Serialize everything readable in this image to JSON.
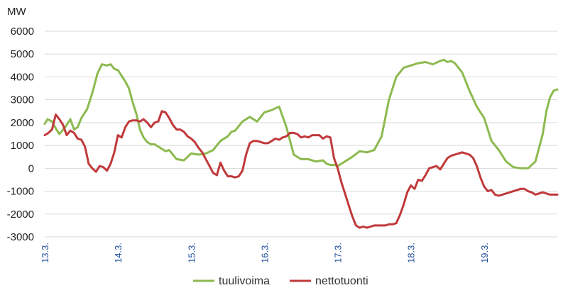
{
  "chart_data": {
    "type": "line",
    "ylabel": "MW",
    "ylim": [
      -3000,
      6000
    ],
    "yticks": [
      6000,
      5000,
      4000,
      3000,
      2000,
      1000,
      0,
      -1000,
      -2000,
      -3000
    ],
    "xlim": [
      0,
      7
    ],
    "categories": [
      "13.3.",
      "14.3.",
      "15.3.",
      "16.3.",
      "17.3.",
      "18.3.",
      "19.3."
    ],
    "grid": true,
    "legend_position": "bottom",
    "series": [
      {
        "name": "tuulivoima",
        "color": "#8cba4f",
        "x": [
          0,
          0.04,
          0.1,
          0.15,
          0.2,
          0.28,
          0.35,
          0.4,
          0.45,
          0.5,
          0.58,
          0.65,
          0.72,
          0.78,
          0.85,
          0.9,
          0.95,
          1.0,
          1.05,
          1.1,
          1.15,
          1.2,
          1.25,
          1.3,
          1.35,
          1.4,
          1.45,
          1.5,
          1.55,
          1.6,
          1.65,
          1.7,
          1.8,
          1.9,
          2.0,
          2.1,
          2.2,
          2.3,
          2.4,
          2.5,
          2.55,
          2.6,
          2.7,
          2.8,
          2.9,
          3.0,
          3.1,
          3.2,
          3.3,
          3.4,
          3.5,
          3.6,
          3.7,
          3.8,
          3.85,
          3.9,
          3.95,
          4.0,
          4.05,
          4.1,
          4.2,
          4.3,
          4.4,
          4.5,
          4.6,
          4.7,
          4.8,
          4.9,
          5.0,
          5.1,
          5.2,
          5.3,
          5.4,
          5.45,
          5.5,
          5.55,
          5.6,
          5.65,
          5.7,
          5.8,
          5.9,
          6.0,
          6.1,
          6.2,
          6.3,
          6.4,
          6.5,
          6.6,
          6.7,
          6.8,
          6.85,
          6.9,
          6.95,
          7.0
        ],
        "values": [
          1950,
          2150,
          2050,
          1750,
          1500,
          1800,
          2150,
          1700,
          1800,
          2200,
          2600,
          3300,
          4150,
          4550,
          4500,
          4550,
          4350,
          4300,
          4050,
          3800,
          3500,
          2900,
          2400,
          1700,
          1350,
          1150,
          1050,
          1050,
          950,
          850,
          750,
          800,
          400,
          350,
          650,
          600,
          650,
          800,
          1200,
          1400,
          1600,
          1650,
          2050,
          2250,
          2050,
          2450,
          2550,
          2700,
          1800,
          600,
          400,
          400,
          300,
          350,
          200,
          150,
          150,
          100,
          200,
          300,
          500,
          750,
          700,
          800,
          1400,
          3000,
          4000,
          4400,
          4500,
          4600,
          4650,
          4550,
          4700,
          4750,
          4650,
          4700,
          4600,
          4400,
          4200,
          3400,
          2700,
          2200,
          1200,
          800,
          300,
          50,
          0,
          0,
          300,
          1500,
          2500,
          3100,
          3400,
          3450
        ]
      },
      {
        "name": "nettotuonti",
        "color": "#c0393b",
        "x": [
          0,
          0.05,
          0.1,
          0.15,
          0.2,
          0.25,
          0.3,
          0.35,
          0.4,
          0.45,
          0.5,
          0.55,
          0.6,
          0.65,
          0.7,
          0.75,
          0.8,
          0.85,
          0.9,
          0.95,
          1.0,
          1.05,
          1.1,
          1.15,
          1.2,
          1.25,
          1.3,
          1.35,
          1.4,
          1.45,
          1.5,
          1.55,
          1.6,
          1.65,
          1.7,
          1.75,
          1.8,
          1.85,
          1.9,
          1.95,
          2.0,
          2.05,
          2.1,
          2.15,
          2.2,
          2.25,
          2.3,
          2.35,
          2.4,
          2.45,
          2.5,
          2.55,
          2.6,
          2.65,
          2.7,
          2.75,
          2.8,
          2.85,
          2.9,
          2.95,
          3.0,
          3.05,
          3.1,
          3.15,
          3.2,
          3.25,
          3.3,
          3.35,
          3.4,
          3.45,
          3.5,
          3.55,
          3.6,
          3.65,
          3.7,
          3.75,
          3.8,
          3.85,
          3.9,
          3.95,
          4.0,
          4.05,
          4.1,
          4.15,
          4.2,
          4.25,
          4.3,
          4.35,
          4.4,
          4.45,
          4.5,
          4.55,
          4.6,
          4.65,
          4.7,
          4.75,
          4.8,
          4.85,
          4.9,
          4.95,
          5.0,
          5.05,
          5.1,
          5.15,
          5.2,
          5.25,
          5.3,
          5.35,
          5.4,
          5.45,
          5.5,
          5.55,
          5.6,
          5.65,
          5.7,
          5.75,
          5.8,
          5.85,
          5.9,
          5.95,
          6.0,
          6.05,
          6.1,
          6.15,
          6.2,
          6.25,
          6.3,
          6.35,
          6.4,
          6.45,
          6.5,
          6.55,
          6.6,
          6.65,
          6.7,
          6.75,
          6.8,
          6.85,
          6.9,
          6.95,
          7.0
        ],
        "values": [
          1450,
          1550,
          1700,
          2350,
          2150,
          1900,
          1450,
          1650,
          1550,
          1300,
          1250,
          950,
          200,
          0,
          -150,
          100,
          50,
          -100,
          200,
          700,
          1450,
          1350,
          1800,
          2050,
          2100,
          2100,
          2050,
          2150,
          2000,
          1800,
          2000,
          2050,
          2500,
          2450,
          2200,
          1900,
          1700,
          1700,
          1600,
          1400,
          1300,
          1150,
          900,
          700,
          400,
          100,
          -200,
          -300,
          250,
          -100,
          -350,
          -350,
          -400,
          -350,
          -100,
          600,
          1100,
          1200,
          1200,
          1150,
          1100,
          1100,
          1200,
          1300,
          1250,
          1350,
          1400,
          1550,
          1550,
          1500,
          1350,
          1400,
          1350,
          1450,
          1450,
          1450,
          1300,
          1400,
          1350,
          450,
          0,
          -600,
          -1100,
          -1600,
          -2100,
          -2500,
          -2600,
          -2550,
          -2600,
          -2550,
          -2500,
          -2500,
          -2500,
          -2500,
          -2450,
          -2450,
          -2400,
          -2050,
          -1600,
          -1050,
          -750,
          -900,
          -500,
          -550,
          -300,
          0,
          50,
          100,
          -50,
          200,
          450,
          550,
          600,
          650,
          700,
          650,
          600,
          450,
          100,
          -400,
          -800,
          -1000,
          -950,
          -1150,
          -1200,
          -1150,
          -1100,
          -1050,
          -1000,
          -950,
          -900,
          -900,
          -1000,
          -1050,
          -1150,
          -1100,
          -1050,
          -1100,
          -1150,
          -1150,
          -1150
        ]
      }
    ]
  }
}
